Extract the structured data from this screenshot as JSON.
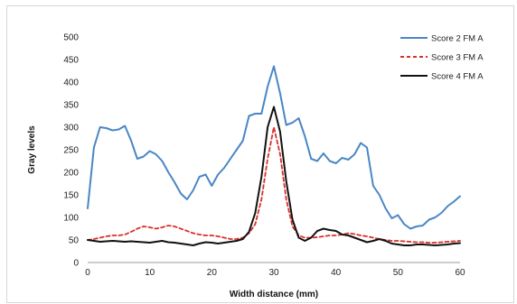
{
  "chart_data": {
    "type": "line",
    "title": "",
    "xlabel": "Width distance (mm)",
    "ylabel": "Gray levels",
    "xlim": [
      0,
      60
    ],
    "ylim": [
      0,
      500
    ],
    "xticks": [
      "0",
      "10",
      "20",
      "30",
      "40",
      "50",
      "60"
    ],
    "yticks": [
      "0",
      "50",
      "100",
      "150",
      "200",
      "250",
      "300",
      "350",
      "400",
      "450",
      "500"
    ],
    "grid": false,
    "legend_position": "top-right",
    "series": [
      {
        "name": "Score 2 FM A",
        "color": "#4a86c5",
        "style": "solid",
        "x": [
          0,
          1,
          2,
          3,
          4,
          5,
          6,
          7,
          8,
          9,
          10,
          11,
          12,
          13,
          14,
          15,
          16,
          17,
          18,
          19,
          20,
          21,
          22,
          23,
          24,
          25,
          26,
          27,
          28,
          29,
          30,
          31,
          32,
          33,
          34,
          35,
          36,
          37,
          38,
          39,
          40,
          41,
          42,
          43,
          44,
          45,
          46,
          47,
          48,
          49,
          50,
          51,
          52,
          53,
          54,
          55,
          56,
          57,
          58,
          59,
          60
        ],
        "y": [
          120,
          255,
          300,
          298,
          293,
          295,
          303,
          270,
          230,
          235,
          247,
          240,
          225,
          200,
          178,
          153,
          140,
          160,
          190,
          195,
          170,
          195,
          210,
          230,
          250,
          270,
          325,
          330,
          330,
          390,
          435,
          375,
          305,
          310,
          320,
          280,
          230,
          225,
          242,
          225,
          220,
          232,
          228,
          240,
          265,
          255,
          170,
          150,
          120,
          98,
          105,
          85,
          75,
          80,
          82,
          95,
          100,
          110,
          125,
          135,
          147
        ]
      },
      {
        "name": "Score 3 FM A",
        "color": "#d9302c",
        "style": "dashed",
        "x": [
          0,
          1,
          2,
          3,
          4,
          5,
          6,
          7,
          8,
          9,
          10,
          11,
          12,
          13,
          14,
          15,
          16,
          17,
          18,
          19,
          20,
          21,
          22,
          23,
          24,
          25,
          26,
          27,
          28,
          29,
          30,
          31,
          32,
          33,
          34,
          35,
          36,
          37,
          38,
          39,
          40,
          41,
          42,
          43,
          44,
          45,
          46,
          47,
          48,
          49,
          50,
          51,
          52,
          53,
          54,
          55,
          56,
          57,
          58,
          59,
          60
        ],
        "y": [
          50,
          52,
          55,
          58,
          60,
          60,
          62,
          68,
          75,
          80,
          78,
          75,
          78,
          82,
          80,
          75,
          70,
          65,
          62,
          60,
          60,
          58,
          55,
          52,
          52,
          55,
          65,
          85,
          140,
          230,
          300,
          240,
          140,
          80,
          60,
          55,
          55,
          56,
          58,
          60,
          60,
          62,
          65,
          63,
          60,
          58,
          55,
          52,
          50,
          48,
          48,
          47,
          46,
          45,
          45,
          44,
          44,
          45,
          46,
          47,
          48
        ]
      },
      {
        "name": "Score 4 FM A",
        "color": "#111111",
        "style": "solid",
        "x": [
          0,
          1,
          2,
          3,
          4,
          5,
          6,
          7,
          8,
          9,
          10,
          11,
          12,
          13,
          14,
          15,
          16,
          17,
          18,
          19,
          20,
          21,
          22,
          23,
          24,
          25,
          26,
          27,
          28,
          29,
          30,
          31,
          32,
          33,
          34,
          35,
          36,
          37,
          38,
          39,
          40,
          41,
          42,
          43,
          44,
          45,
          46,
          47,
          48,
          49,
          50,
          51,
          52,
          53,
          54,
          55,
          56,
          57,
          58,
          59,
          60
        ],
        "y": [
          50,
          48,
          46,
          47,
          48,
          47,
          46,
          47,
          46,
          45,
          44,
          46,
          48,
          45,
          44,
          42,
          40,
          38,
          42,
          45,
          44,
          42,
          44,
          46,
          48,
          52,
          68,
          110,
          190,
          300,
          345,
          290,
          180,
          95,
          55,
          48,
          55,
          70,
          75,
          72,
          70,
          62,
          60,
          55,
          50,
          45,
          48,
          52,
          48,
          42,
          40,
          38,
          38,
          40,
          40,
          39,
          38,
          39,
          40,
          42,
          43
        ]
      }
    ]
  }
}
